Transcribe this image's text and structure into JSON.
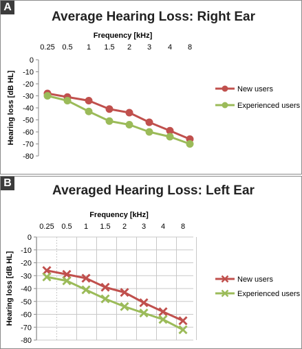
{
  "chart_data": [
    {
      "panel_letter": "A",
      "type": "line",
      "title": "Average  Hearing Loss: Right Ear",
      "xlabel": "Frequency [kHz]",
      "ylabel": "Hearing loss [dB HL]",
      "x_axis_position": "top",
      "categories": [
        "0.25",
        "0.5",
        "1",
        "1.5",
        "2",
        "3",
        "4",
        "8"
      ],
      "ylim": [
        -80,
        0
      ],
      "yticks": [
        0,
        -10,
        -20,
        -30,
        -40,
        -50,
        -60,
        -70,
        -80
      ],
      "grid": false,
      "legend_position": "right",
      "marker": "circle",
      "series": [
        {
          "name": "New users",
          "color": "#c0504d",
          "values": [
            -28,
            -31,
            -34,
            -41,
            -44,
            -52,
            -59,
            -66
          ]
        },
        {
          "name": "Experienced users",
          "color": "#9bbb59",
          "values": [
            -30,
            -34,
            -43,
            -51,
            -54,
            -60,
            -64,
            -70
          ]
        }
      ]
    },
    {
      "panel_letter": "B",
      "type": "line",
      "title": "Averaged Hearing Loss: Left Ear",
      "xlabel": "Frequency [kHz]",
      "ylabel": "Hearing loss [dB HL]",
      "x_axis_position": "top",
      "categories": [
        "0.25",
        "0.5",
        "1",
        "1.5",
        "2",
        "3",
        "4",
        "8"
      ],
      "ylim": [
        -80,
        0
      ],
      "yticks": [
        0,
        -10,
        -20,
        -30,
        -40,
        -50,
        -60,
        -70,
        -80
      ],
      "grid": true,
      "legend_position": "right",
      "marker": "x",
      "series": [
        {
          "name": "New users",
          "color": "#c0504d",
          "values": [
            -26,
            -29,
            -32,
            -39,
            -43,
            -51,
            -58,
            -65
          ]
        },
        {
          "name": "Experienced users",
          "color": "#9bbb59",
          "values": [
            -31,
            -34,
            -41,
            -48,
            -54,
            -59,
            -64,
            -72
          ]
        }
      ]
    }
  ]
}
